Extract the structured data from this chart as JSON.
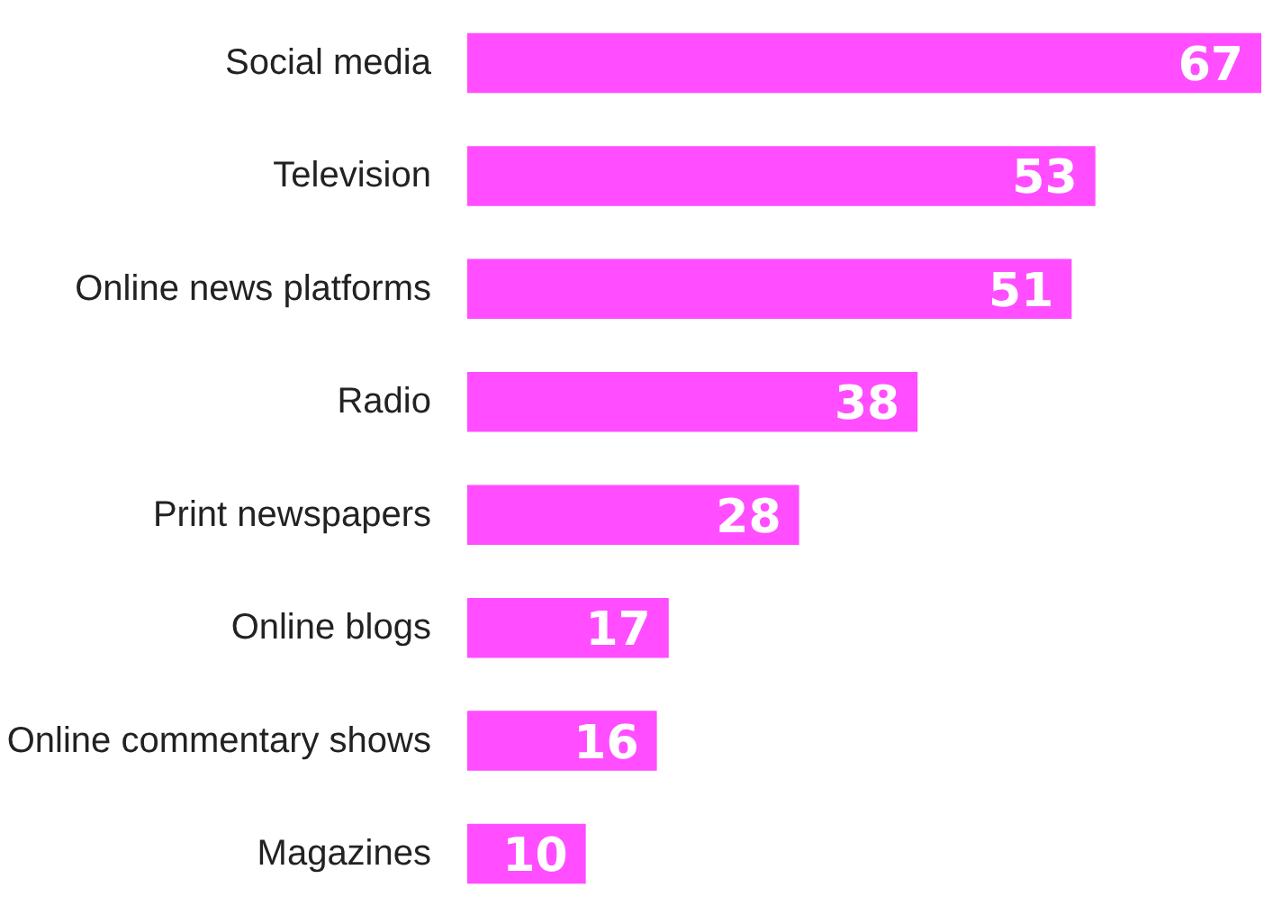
{
  "chart_data": {
    "type": "bar",
    "orientation": "horizontal",
    "categories": [
      "Social media",
      "Television",
      "Online news platforms",
      "Radio",
      "Print newspapers",
      "Online blogs",
      "Online commentary shows",
      "Magazines"
    ],
    "values": [
      67,
      53,
      51,
      38,
      28,
      17,
      16,
      10
    ],
    "color": "#ff4dff",
    "data_labels": true,
    "tick_labels": "y",
    "grid": false,
    "xlim": [
      0,
      67
    ]
  }
}
